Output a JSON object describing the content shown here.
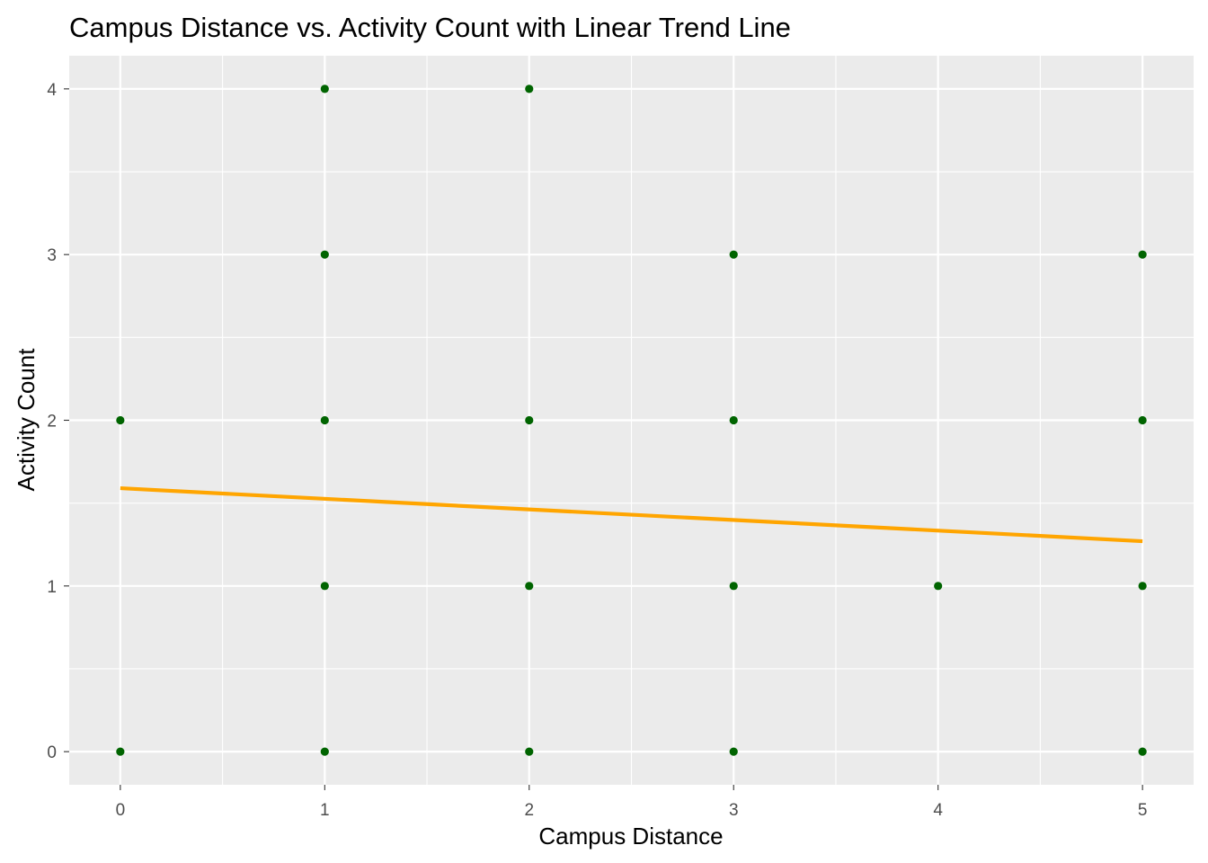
{
  "chart_data": {
    "type": "scatter",
    "title": "Campus Distance vs. Activity Count with Linear Trend Line",
    "xlabel": "Campus Distance",
    "ylabel": "Activity Count",
    "xlim": [
      -0.25,
      5.25
    ],
    "ylim": [
      -0.2,
      4.2
    ],
    "x_ticks": [
      0,
      1,
      2,
      3,
      4,
      5
    ],
    "y_ticks": [
      0,
      1,
      2,
      3,
      4
    ],
    "grid": true,
    "panel_background": "#ebebeb",
    "grid_color": "#ffffff",
    "point_color": "#006400",
    "points": [
      {
        "x": 0,
        "y": 0
      },
      {
        "x": 0,
        "y": 2
      },
      {
        "x": 1,
        "y": 0
      },
      {
        "x": 1,
        "y": 1
      },
      {
        "x": 1,
        "y": 2
      },
      {
        "x": 1,
        "y": 3
      },
      {
        "x": 1,
        "y": 4
      },
      {
        "x": 2,
        "y": 0
      },
      {
        "x": 2,
        "y": 1
      },
      {
        "x": 2,
        "y": 2
      },
      {
        "x": 2,
        "y": 4
      },
      {
        "x": 3,
        "y": 0
      },
      {
        "x": 3,
        "y": 1
      },
      {
        "x": 3,
        "y": 2
      },
      {
        "x": 3,
        "y": 3
      },
      {
        "x": 4,
        "y": 1
      },
      {
        "x": 5,
        "y": 0
      },
      {
        "x": 5,
        "y": 1
      },
      {
        "x": 5,
        "y": 2
      },
      {
        "x": 5,
        "y": 3
      }
    ],
    "trend_line": {
      "type": "linear",
      "color": "#ffa500",
      "start": {
        "x": 0,
        "y": 1.59
      },
      "end": {
        "x": 5,
        "y": 1.27
      }
    }
  }
}
